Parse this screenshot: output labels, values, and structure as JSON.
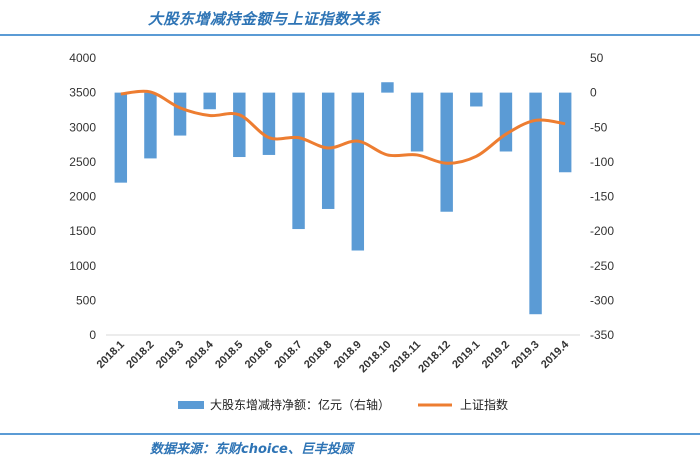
{
  "header": {
    "title": "大股东增减持金额与上证指数关系"
  },
  "footer": {
    "source": "数据来源：东财choice、巨丰投顾"
  },
  "chart_data": {
    "type": "bar+line",
    "categories": [
      "2018.1",
      "2018.2",
      "2018.3",
      "2018.4",
      "2018.5",
      "2018.6",
      "2018.7",
      "2018.8",
      "2018.9",
      "2018.10",
      "2018.11",
      "2018.12",
      "2019.1",
      "2019.2",
      "2019.3",
      "2019.4"
    ],
    "series": [
      {
        "name": "大股东增减持净额：亿元（右轴）",
        "type": "bar",
        "axis": "right",
        "values": [
          -130,
          -95,
          -62,
          -24,
          -93,
          -90,
          -197,
          -168,
          -228,
          15,
          -85,
          -172,
          -20,
          -85,
          -320,
          -115
        ],
        "color": "#5b9bd5"
      },
      {
        "name": "上证指数",
        "type": "line",
        "axis": "left",
        "values": [
          3480,
          3510,
          3280,
          3170,
          3180,
          2850,
          2850,
          2700,
          2800,
          2600,
          2600,
          2480,
          2580,
          2900,
          3100,
          3050
        ],
        "color": "#ed7d31"
      }
    ],
    "left_axis": {
      "min": 0,
      "max": 4000,
      "ticks": [
        "0",
        "500",
        "1000",
        "1500",
        "2000",
        "2500",
        "3000",
        "3500",
        "4000"
      ]
    },
    "right_axis": {
      "min": -350,
      "max": 50,
      "ticks": [
        "50",
        "0",
        "-50",
        "-100",
        "-150",
        "-200",
        "-250",
        "-300",
        "-350"
      ]
    },
    "grid": false,
    "legend": "bottom"
  }
}
